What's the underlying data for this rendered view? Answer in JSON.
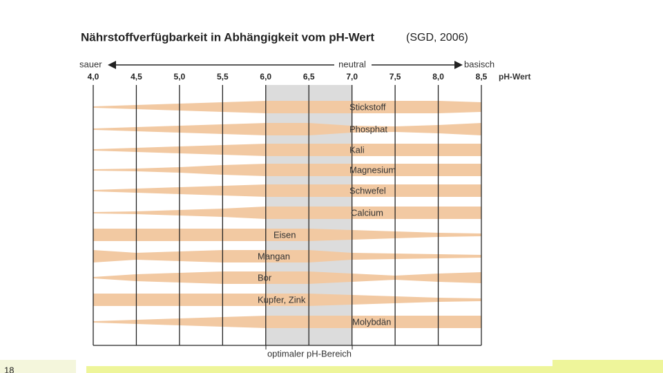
{
  "header": {
    "title": "Nährstoffverfügbarkeit in Abhängigkeit vom pH-Wert",
    "source": "(SGD, 2006)"
  },
  "scale": {
    "left": "sauer",
    "middle": "neutral",
    "right": "basisch",
    "unit": "pH-Wert",
    "ticks": [
      "4,0",
      "4,5",
      "5,0",
      "5,5",
      "6,0",
      "6,5",
      "7,0",
      "7,5",
      "8,0",
      "8,5"
    ]
  },
  "nutrients": [
    "Stickstoff",
    "Phosphat",
    "Kali",
    "Magnesium",
    "Schwefel",
    "Calcium",
    "Eisen",
    "Mangan",
    "Bor",
    "Kupfer, Zink",
    "Molybdän"
  ],
  "optimal": "optimaler pH-Bereich",
  "footer": {
    "page": "18"
  }
}
